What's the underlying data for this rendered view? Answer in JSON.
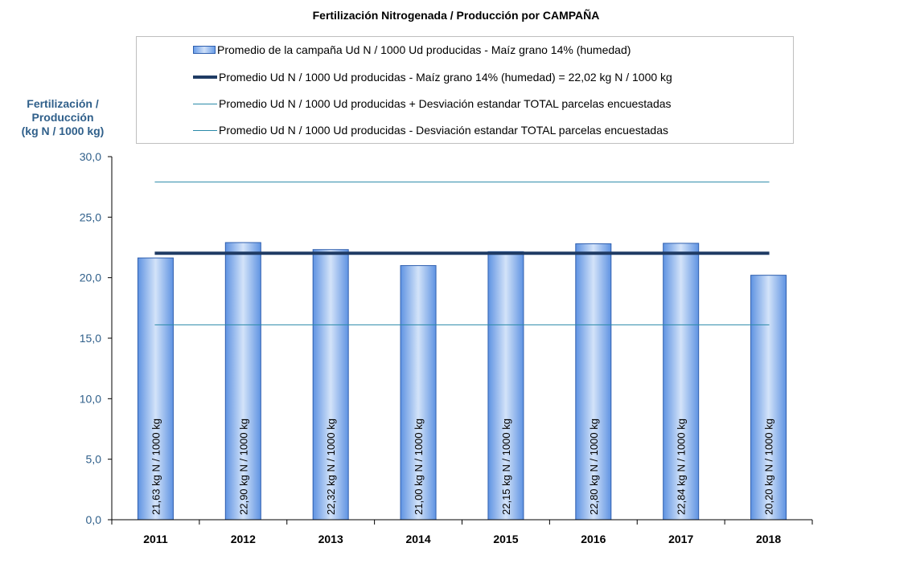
{
  "chart_data": {
    "type": "bar",
    "title": "Fertilización Nitrogenada / Producción por CAMPAÑA",
    "ylabel_lines": [
      "Fertilización /",
      "Producción",
      "(kg N / 1000 kg)"
    ],
    "categories": [
      "2011",
      "2012",
      "2013",
      "2014",
      "2015",
      "2016",
      "2017",
      "2018"
    ],
    "series": [
      {
        "name": "Promedio de la campaña Ud N / 1000 Ud producidas - Maíz grano 14% (humedad)",
        "values": [
          21.63,
          22.9,
          22.32,
          21.0,
          22.15,
          22.8,
          22.84,
          20.2
        ],
        "labels": [
          "21,63 kg N / 1000 kg",
          "22,90 kg N / 1000 kg",
          "22,32 kg N / 1000 kg",
          "21,00 kg N / 1000 kg",
          "22,15 kg N / 1000 kg",
          "22,80 kg N / 1000 kg",
          "22,84 kg N / 1000 kg",
          "20,20 kg N / 1000 kg"
        ]
      }
    ],
    "reference_lines": [
      {
        "name": "Promedio Ud N / 1000 Ud producidas - Maíz grano 14% (humedad) = 22,02 kg N / 1000 kg",
        "value": 22.02,
        "style": "thick",
        "color": "#1f3b64"
      },
      {
        "name": "Promedio Ud N / 1000 Ud producidas + Desviación estandar TOTAL parcelas encuestadas",
        "value": 27.9,
        "style": "thin",
        "color": "#2a8aa8"
      },
      {
        "name": "Promedio Ud N / 1000 Ud producidas - Desviación estandar TOTAL parcelas encuestadas",
        "value": 16.1,
        "style": "thin",
        "color": "#2a8aa8"
      }
    ],
    "yticks": [
      "0,0",
      "5,0",
      "10,0",
      "15,0",
      "20,0",
      "25,0",
      "30,0"
    ],
    "ylim": [
      0,
      30
    ],
    "grid": false,
    "legend_position": "top",
    "colors": {
      "bar": "#6b9ee8",
      "bar_highlight": "#cfe0f8",
      "bar_edge": "#2f5fae",
      "axis": "#000000",
      "ytick_text": "#2f5f8a"
    }
  }
}
